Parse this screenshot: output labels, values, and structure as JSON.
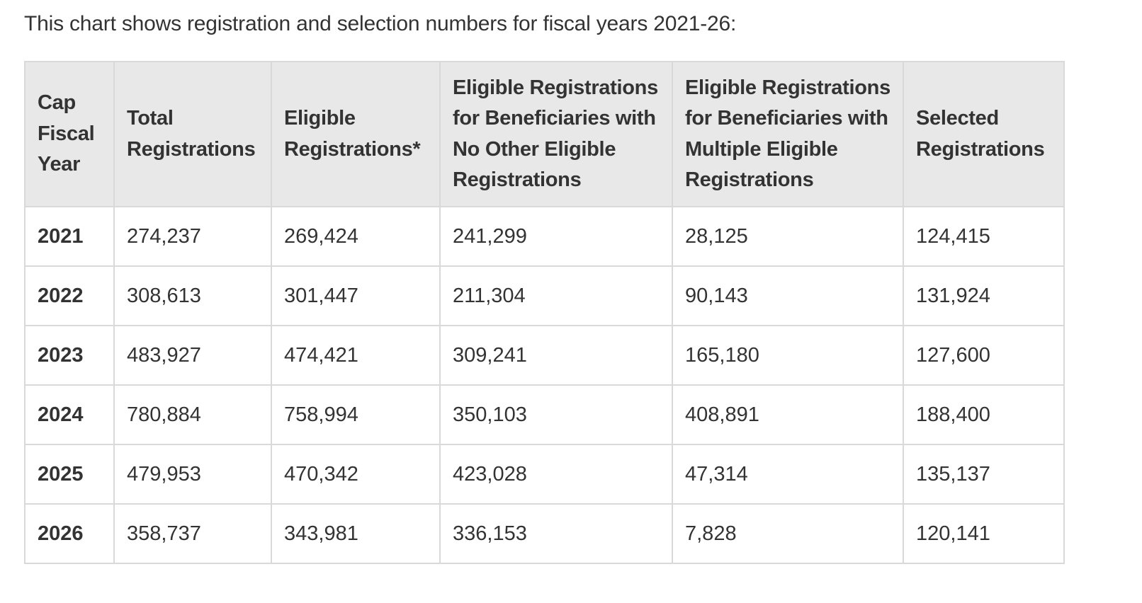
{
  "intro_text": "This chart shows registration and selection numbers for fiscal years 2021-26:",
  "table": {
    "headers": [
      "Cap Fiscal Year",
      "Total Registrations",
      "Eligible Registrations*",
      "Eligible Registrations for Beneficiaries with No Other Eligible Registrations",
      "Eligible Registrations for Beneficiaries with Multiple Eligible Registrations",
      "Selected Registrations"
    ],
    "rows": [
      [
        "2021",
        "274,237",
        "269,424",
        "241,299",
        "28,125",
        "124,415"
      ],
      [
        "2022",
        "308,613",
        "301,447",
        "211,304",
        "90,143",
        "131,924"
      ],
      [
        "2023",
        "483,927",
        "474,421",
        "309,241",
        "165,180",
        "127,600"
      ],
      [
        "2024",
        "780,884",
        "758,994",
        "350,103",
        "408,891",
        "188,400"
      ],
      [
        "2025",
        "479,953",
        "470,342",
        "423,028",
        "47,314",
        "135,137"
      ],
      [
        "2026",
        "358,737",
        "343,981",
        "336,153",
        "7,828",
        "120,141"
      ]
    ]
  },
  "colors": {
    "text": "#333333",
    "header_background": "#e8e8e8",
    "border": "#d9d9d9",
    "background": "#ffffff"
  }
}
